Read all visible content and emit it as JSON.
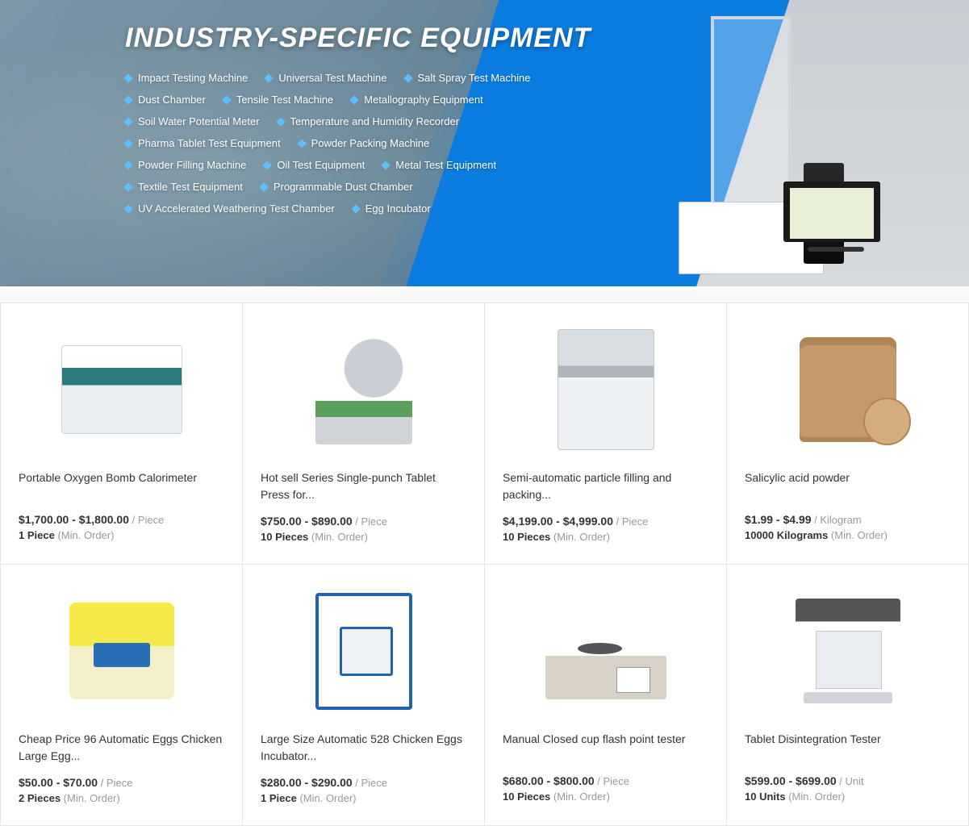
{
  "hero": {
    "title": "INDUSTRY-SPECIFIC EQUIPMENT",
    "bg_accent_color": "#0b7ce0",
    "diamond_color": "#5bc0ff",
    "links": [
      "Impact Testing Machine",
      "Universal Test Machine",
      "Salt Spray Test Machine",
      "Dust Chamber",
      "Tensile Test Machine",
      "Metallography Equipment",
      "Soil Water Potential Meter",
      "Temperature and Humidity Recorder",
      "Pharma Tablet Test Equipment",
      "Powder Packing Machine",
      "Powder Filling Machine",
      "Oil Test Equipment",
      "Metal Test Equipment",
      "Textile Test Equipment",
      "Programmable Dust Chamber",
      "UV Accelerated Weathering Test Chamber",
      "Egg Incubator"
    ]
  },
  "products": [
    {
      "title": "Portable Oxygen Bomb Calorimeter",
      "price": "$1,700.00 - $1,800.00",
      "unit": "/ Piece",
      "moq_qty": "1 Piece",
      "moq_label": "(Min. Order)",
      "ph": "ph-calorimeter"
    },
    {
      "title": "Hot sell Series Single-punch Tablet Press for...",
      "price": "$750.00 - $890.00",
      "unit": "/ Piece",
      "moq_qty": "10 Pieces",
      "moq_label": "(Min. Order)",
      "ph": "ph-press"
    },
    {
      "title": "Semi-automatic particle filling and packing...",
      "price": "$4,199.00 - $4,999.00",
      "unit": "/ Piece",
      "moq_qty": "10 Pieces",
      "moq_label": "(Min. Order)",
      "ph": "ph-filler"
    },
    {
      "title": "Salicylic acid powder",
      "price": "$1.99 - $4.99",
      "unit": "/ Kilogram",
      "moq_qty": "10000 Kilograms",
      "moq_label": "(Min. Order)",
      "ph": "ph-barrel"
    },
    {
      "title": "Cheap Price 96 Automatic Eggs Chicken Large Egg...",
      "price": "$50.00 - $70.00",
      "unit": "/ Piece",
      "moq_qty": "2 Pieces",
      "moq_label": "(Min. Order)",
      "ph": "ph-incubator-yellow"
    },
    {
      "title": "Large Size Automatic 528 Chicken Eggs Incubator...",
      "price": "$280.00 - $290.00",
      "unit": "/ Piece",
      "moq_qty": "1 Piece",
      "moq_label": "(Min. Order)",
      "ph": "ph-incubator-blue"
    },
    {
      "title": "Manual Closed cup flash point tester",
      "price": "$680.00 - $800.00",
      "unit": "/ Piece",
      "moq_qty": "10 Pieces",
      "moq_label": "(Min. Order)",
      "ph": "ph-flash"
    },
    {
      "title": "Tablet Disintegration Tester",
      "price": "$599.00 - $699.00",
      "unit": "/ Unit",
      "moq_qty": "10 Units",
      "moq_label": "(Min. Order)",
      "ph": "ph-disint"
    }
  ]
}
